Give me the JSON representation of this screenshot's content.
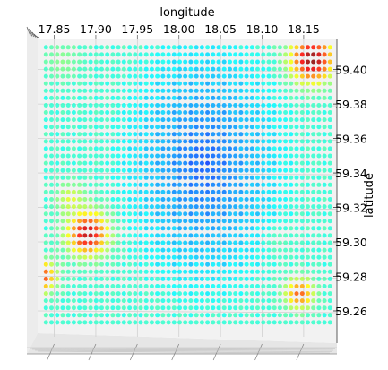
{
  "chart_data": {
    "type": "scatter",
    "projection": "3d-top-view",
    "xlabel": "longitude",
    "ylabel": "latitude",
    "xlim": [
      17.83,
      18.19
    ],
    "ylim": [
      59.247,
      59.418
    ],
    "xticks": [
      17.85,
      17.9,
      17.95,
      18.0,
      18.05,
      18.1,
      18.15
    ],
    "xtick_labels": [
      "17.85",
      "17.90",
      "17.95",
      "18.00",
      "18.05",
      "18.10",
      "18.15"
    ],
    "yticks": [
      59.26,
      59.28,
      59.3,
      59.32,
      59.34,
      59.36,
      59.38,
      59.4
    ],
    "ytick_labels": [
      "59.26",
      "59.28",
      "59.30",
      "59.32",
      "59.34",
      "59.36",
      "59.38",
      "59.40"
    ],
    "grid": true,
    "colormap": "jet",
    "color_value_range": [
      0,
      1
    ],
    "grid_spacing": {
      "longitude": 0.0067,
      "latitude": 0.0042
    },
    "value_field_description": "regular lon/lat grid of points colored by a low (blue, center-east) to high (red, corners) value",
    "hotspots": [
      {
        "longitude": 18.16,
        "latitude": 59.406,
        "radius": 0.03,
        "value": 1.0
      },
      {
        "longitude": 17.89,
        "latitude": 59.305,
        "radius": 0.028,
        "value": 0.95
      },
      {
        "longitude": 17.835,
        "latitude": 59.28,
        "radius": 0.02,
        "value": 0.85
      },
      {
        "longitude": 18.145,
        "latitude": 59.27,
        "radius": 0.02,
        "value": 0.8
      },
      {
        "longitude": 17.87,
        "latitude": 59.325,
        "radius": 0.02,
        "value": 0.6
      },
      {
        "longitude": 18.12,
        "latitude": 59.3,
        "radius": 0.02,
        "value": 0.45
      },
      {
        "longitude": 17.86,
        "latitude": 59.405,
        "radius": 0.025,
        "value": 0.5
      }
    ],
    "low_zone": {
      "longitude": 18.03,
      "latitude": 59.345,
      "value": 0.2
    }
  }
}
